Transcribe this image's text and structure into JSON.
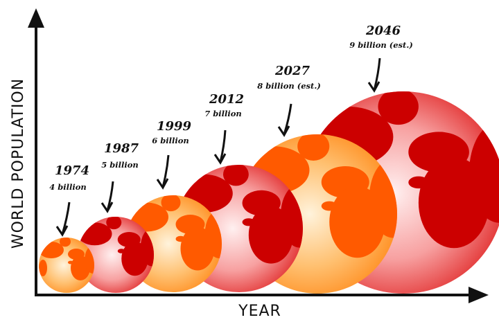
{
  "chart_data": {
    "type": "bubble",
    "xlabel": "YEAR",
    "ylabel": "WORLD POPULATION",
    "points": [
      {
        "year": "1974",
        "label": "4 billion",
        "population_billion": 4,
        "estimated": false,
        "color": "#f97a1e"
      },
      {
        "year": "1987",
        "label": "5 billion",
        "population_billion": 5,
        "estimated": false,
        "color": "#e01a1a"
      },
      {
        "year": "1999",
        "label": "6 billion",
        "population_billion": 6,
        "estimated": false,
        "color": "#f97a1e"
      },
      {
        "year": "2012",
        "label": "7 billion",
        "population_billion": 7,
        "estimated": false,
        "color": "#e01a1a"
      },
      {
        "year": "2027",
        "label": "8 billion (est.)",
        "population_billion": 8,
        "estimated": true,
        "color": "#f97a1e"
      },
      {
        "year": "2046",
        "label": "9 billion (est.)",
        "population_billion": 9,
        "estimated": true,
        "color": "#e01a1a"
      }
    ],
    "marker": "globe-icon"
  }
}
